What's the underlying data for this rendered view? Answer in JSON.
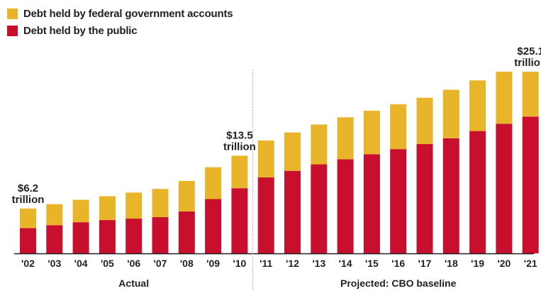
{
  "colors": {
    "public": "#c8102e",
    "government": "#e8b52a",
    "axis": "#231f20",
    "divider": "#9a9a9a"
  },
  "chart_data": {
    "type": "bar",
    "stacked": true,
    "legend": {
      "placement": "top-left",
      "entries": [
        {
          "name": "Debt held by federal government accounts",
          "color": "#e8b52a"
        },
        {
          "name": "Debt held by the public",
          "color": "#c8102e"
        }
      ]
    },
    "categories": [
      "'02",
      "'03",
      "'04",
      "'05",
      "'06",
      "'07",
      "'08",
      "'09",
      "'10",
      "'11",
      "'12",
      "'13",
      "'14",
      "'15",
      "'16",
      "'17",
      "'18",
      "'19",
      "'20",
      "'21"
    ],
    "series": [
      {
        "name": "Debt held by the public",
        "values": [
          3.5,
          3.9,
          4.3,
          4.6,
          4.8,
          5.0,
          5.8,
          7.5,
          9.0,
          10.5,
          11.4,
          12.3,
          13.0,
          13.7,
          14.4,
          15.1,
          15.9,
          16.9,
          17.9,
          18.9
        ]
      },
      {
        "name": "Debt held by federal government accounts",
        "values": [
          2.7,
          2.9,
          3.1,
          3.3,
          3.6,
          3.9,
          4.2,
          4.4,
          4.5,
          5.1,
          5.3,
          5.5,
          5.8,
          6.0,
          6.2,
          6.4,
          6.7,
          7.0,
          7.2,
          6.2
        ]
      }
    ],
    "ylim": [
      0,
      26
    ],
    "grid": false,
    "sections": [
      "Actual",
      "Projected: CBO baseline"
    ],
    "annotations": [
      {
        "category": "'02",
        "line1": "$6.2",
        "line2": "trillion"
      },
      {
        "category": "'10",
        "line1": "$13.5",
        "line2": "trillion"
      },
      {
        "category": "'21",
        "line1": "$25.1",
        "line2": "trillion"
      }
    ]
  }
}
